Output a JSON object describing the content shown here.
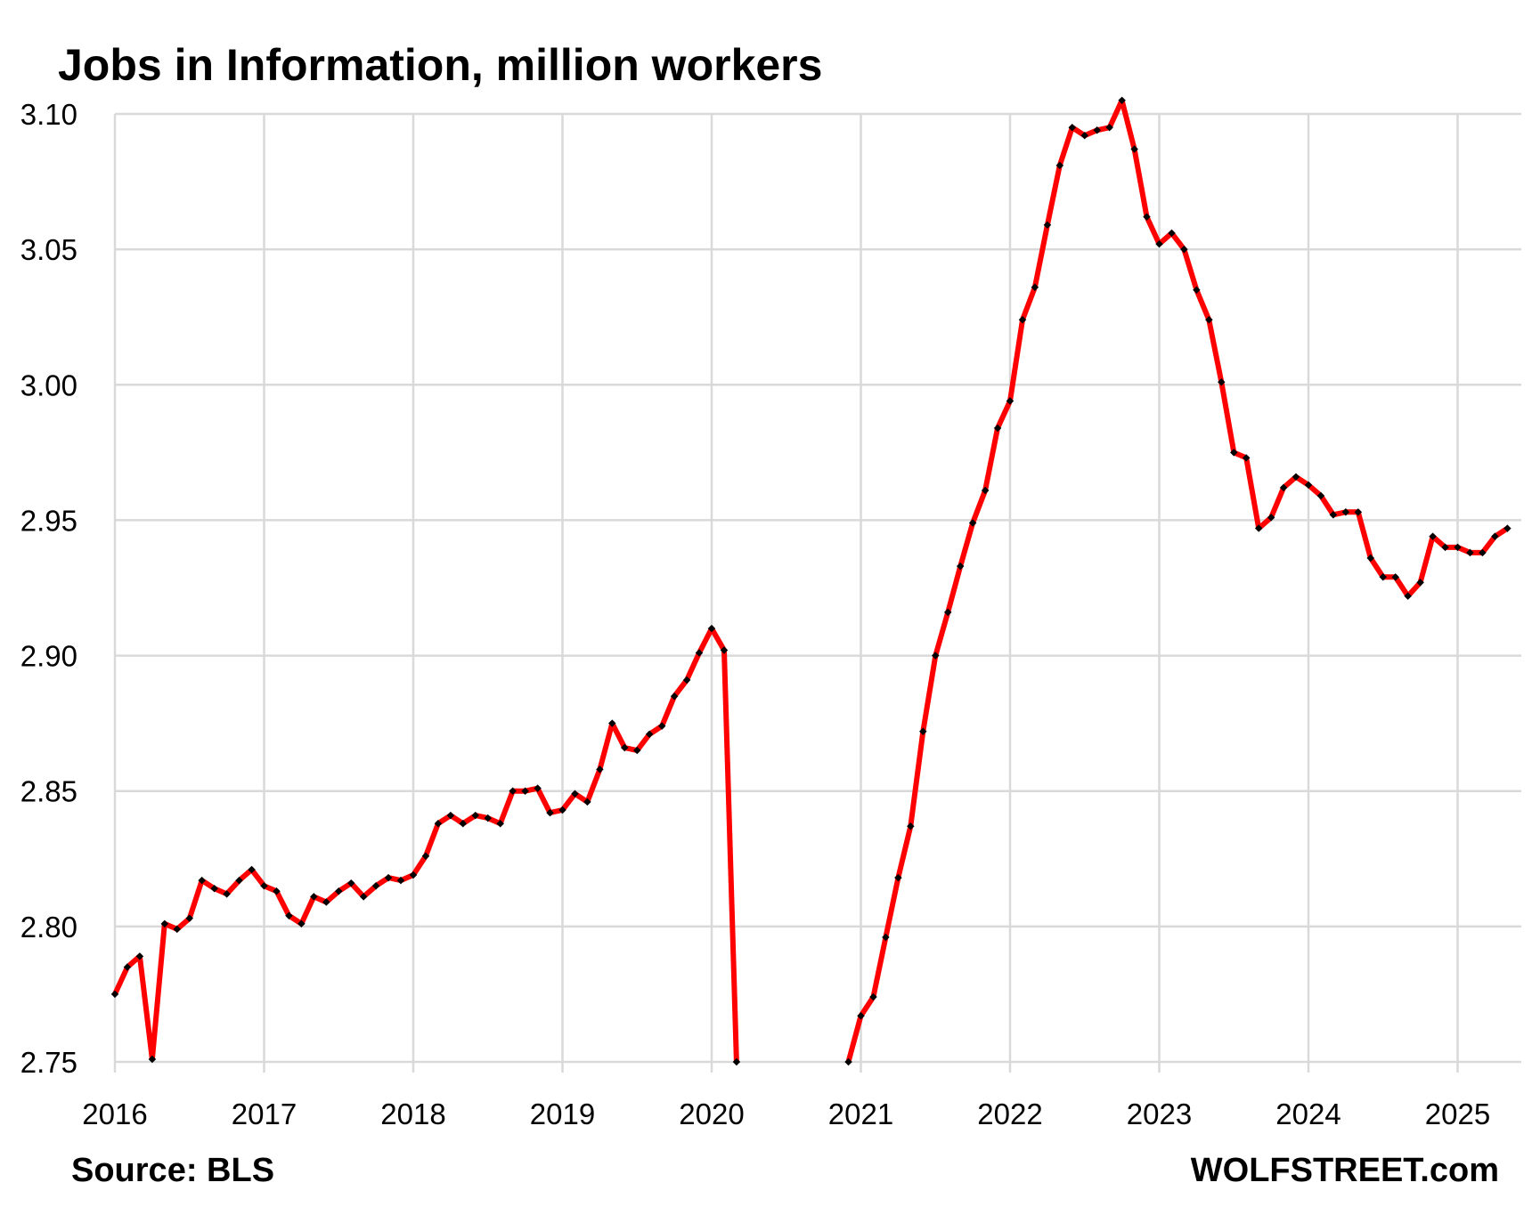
{
  "title": "Jobs in Information, million workers",
  "footer": {
    "source": "Source: BLS",
    "brand": "WOLFSTREET.com"
  },
  "colors": {
    "line": "#ff0000",
    "marker": "#000000",
    "grid": "#d9d9d9"
  },
  "chart_data": {
    "type": "line",
    "title": "Jobs in Information, million workers",
    "xlabel": "",
    "ylabel": "",
    "x_ticks": [
      "2016",
      "2017",
      "2018",
      "2019",
      "2020",
      "2021",
      "2022",
      "2023",
      "2024",
      "2025"
    ],
    "y_ticks": [
      "2.75",
      "2.80",
      "2.85",
      "2.90",
      "2.95",
      "3.00",
      "3.05",
      "3.10"
    ],
    "ylim": [
      2.75,
      3.1
    ],
    "xlim": [
      "2016-01",
      "2025-06"
    ],
    "grid": true,
    "legend": "none",
    "series": [
      {
        "segments": [
          {
            "start": "2016-01",
            "values": [
              2.775,
              2.785,
              2.789,
              2.751,
              2.801,
              2.799,
              2.803,
              2.817,
              2.814,
              2.812,
              2.817,
              2.821,
              2.815,
              2.813,
              2.804,
              2.801,
              2.811,
              2.809,
              2.813,
              2.816,
              2.811,
              2.815,
              2.818,
              2.817,
              2.819,
              2.826,
              2.838,
              2.841,
              2.838,
              2.841,
              2.84,
              2.838,
              2.85,
              2.85,
              2.851,
              2.842,
              2.843,
              2.849,
              2.846,
              2.858,
              2.875,
              2.866,
              2.865,
              2.871,
              2.874,
              2.885,
              2.891,
              2.901,
              2.91,
              2.902,
              2.75
            ]
          },
          {
            "start": "2020-12",
            "values": [
              2.75,
              2.767,
              2.774,
              2.796,
              2.818,
              2.837,
              2.872,
              2.9,
              2.916,
              2.933,
              2.949,
              2.961,
              2.984,
              2.994,
              3.024,
              3.036,
              3.059,
              3.081,
              3.095,
              3.092,
              3.094,
              3.095,
              3.105,
              3.087,
              3.062,
              3.052,
              3.056,
              3.05,
              3.035,
              3.024,
              3.001,
              2.975,
              2.973,
              2.947,
              2.951,
              2.962,
              2.966,
              2.963,
              2.959,
              2.952,
              2.953,
              2.953,
              2.936,
              2.929,
              2.929,
              2.922,
              2.927,
              2.944,
              2.94,
              2.94,
              2.938,
              2.938,
              2.944,
              2.947
            ]
          }
        ]
      }
    ]
  }
}
